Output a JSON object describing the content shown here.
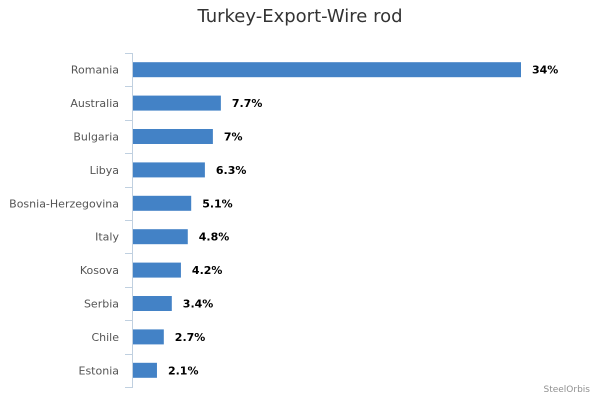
{
  "chart_data": {
    "type": "bar",
    "orientation": "horizontal",
    "title": "Turkey-Export-Wire rod",
    "categories": [
      "Romania",
      "Australia",
      "Bulgaria",
      "Libya",
      "Bosnia-Herzegovina",
      "Italy",
      "Kosova",
      "Serbia",
      "Chile",
      "Estonia"
    ],
    "values": [
      34,
      7.7,
      7,
      6.3,
      5.1,
      4.8,
      4.2,
      3.4,
      2.7,
      2.1
    ],
    "data_labels": [
      "34%",
      "7.7%",
      "7%",
      "6.3%",
      "5.1%",
      "4.8%",
      "4.2%",
      "3.4%",
      "2.7%",
      "2.1%"
    ],
    "value_unit": "%",
    "xlabel": "",
    "ylabel": "",
    "xlim": [
      0,
      34
    ],
    "grid": false,
    "legend": "none",
    "bar_color": "#4382c6"
  },
  "credit": "SteelOrbis"
}
